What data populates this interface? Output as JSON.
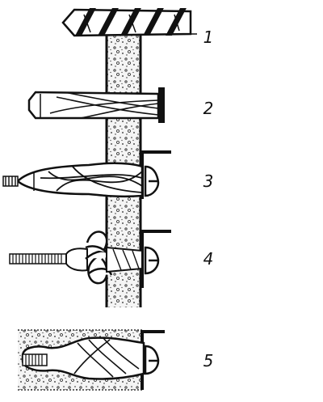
{
  "steps": [
    {
      "label": "1"
    },
    {
      "label": "2"
    },
    {
      "label": "3"
    },
    {
      "label": "4"
    },
    {
      "label": "5"
    }
  ]
}
